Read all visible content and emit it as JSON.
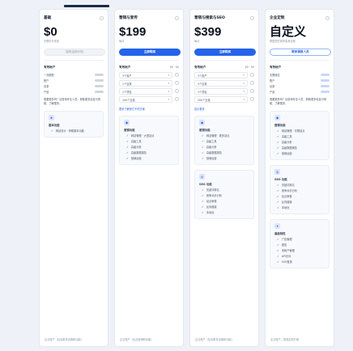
{
  "colors": {
    "accent": "#2563eb",
    "page_bg": "#eef1f7",
    "card_bg": "#ffffff"
  },
  "cards": [
    {
      "name": "基础",
      "price": "$0",
      "price_sub": "无限时长体验",
      "button": "您的当前计划",
      "section": "有效帐户",
      "features": [
        "一流模型",
        "账户",
        "目录",
        "产品"
      ],
      "note": "需要更多吗？请咨询专业人员，获取更多信息与帮助，了解更多。",
      "box_title": "基本功能",
      "box_items": [
        "网站设计 · 帮助基本功能"
      ],
      "footer": "企业账户（包含更多设置和功能）"
    },
    {
      "name": "营销与宣传",
      "price": "$199",
      "price_sub": "每月",
      "button": "立即购买",
      "section": "有效帐户",
      "section_extra": "$0 · $0",
      "selects": [
        "3个用户",
        "1个目录",
        "1个项目",
        "100个交易"
      ],
      "link": "更多了解其它不同方案",
      "box_title": "营销功能",
      "box_items": [
        "网站管理 · 大型站点",
        "高级工具",
        "高级分析",
        "高级数据报告",
        "营销运营"
      ],
      "footer": "企业账户（包含营销和功能）"
    },
    {
      "name": "营销与搜索与SEO",
      "price": "$399",
      "price_sub": "每月",
      "button": "立即购买",
      "section": "有效帐户",
      "section_extra": "$0 · $0",
      "selects": [
        "3个用户",
        "5个目录",
        "3个项目",
        "200个交易"
      ],
      "link": "显示更多",
      "box_title": "营销功能",
      "box_items": [
        "网站管理 · 更多站点",
        "高级工具",
        "高级分析",
        "高级数据报告",
        "营销运营"
      ],
      "box2_title": "SEO 功能",
      "box2_items": [
        "关键词排名",
        "竞争对手分析",
        "站点审核",
        "反向链接",
        "本地化"
      ],
      "footer": "企业账户（包含更多设置和功能）"
    },
    {
      "name": "企业定制",
      "price": "自定义",
      "price_sub": "根据您的需求量身定制",
      "button": "联系销售人员",
      "section": "有效帐户",
      "features": [
        "无限席位",
        "账户",
        "目录",
        "产品"
      ],
      "note": "需要更多吗？请咨询专业人员，获取更多信息与帮助，了解更多。",
      "box_title": "营销功能",
      "box_items": [
        "网站管理 · 无限站点",
        "高级工具",
        "高级分析",
        "高级数据报告",
        "营销运营"
      ],
      "box2_title": "SEO 功能",
      "box2_items": [
        "关键词排名",
        "竞争对手分析",
        "站点审核",
        "反向链接",
        "本地化"
      ],
      "box3_title": "高级特性",
      "box3_items": [
        "广告管理",
        "报告",
        "多帐户管理",
        "API访问",
        "SSO登录"
      ],
      "footer": "企业账户，按需定制方案"
    }
  ]
}
